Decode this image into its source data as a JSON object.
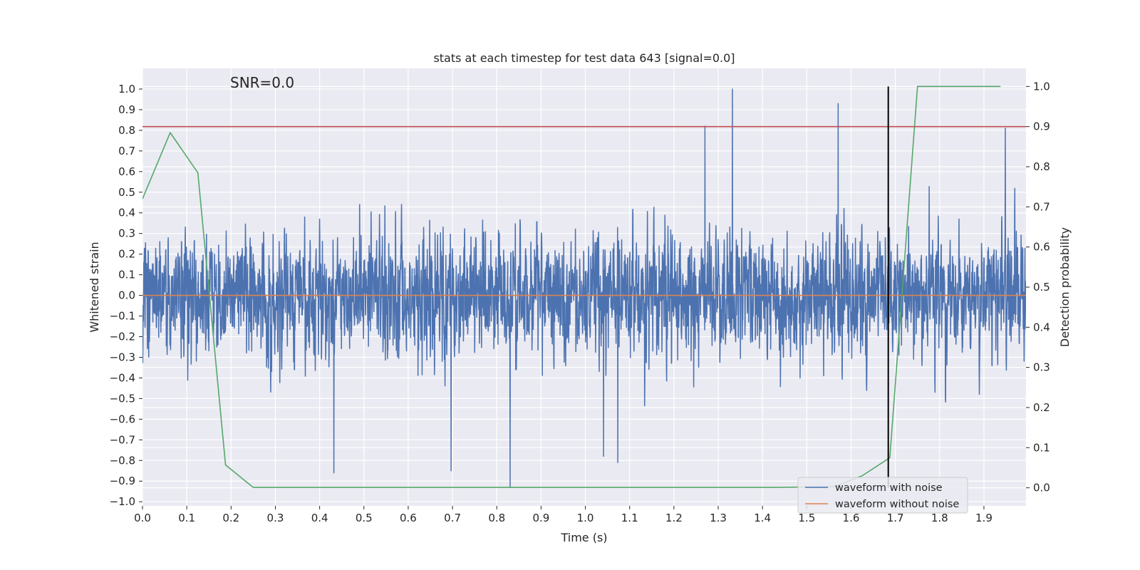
{
  "chart_data": {
    "type": "line",
    "title": "stats at each timestep for test data 643 [signal=0.0]",
    "annotation": "SNR=0.0",
    "xlabel": "Time (s)",
    "ylabel": "Whitened strain",
    "y2label": "Detection probability",
    "xlim": [
      0.0,
      1.995
    ],
    "ylim": [
      -1.02,
      1.1
    ],
    "y2lim": [
      -0.045,
      1.045
    ],
    "x_ticks": [
      0.0,
      0.1,
      0.2,
      0.3,
      0.4,
      0.5,
      0.6,
      0.7,
      0.8,
      0.9,
      1.0,
      1.1,
      1.2,
      1.3,
      1.4,
      1.5,
      1.6,
      1.7,
      1.8,
      1.9
    ],
    "y_ticks": [
      -1.0,
      -0.9,
      -0.8,
      -0.7,
      -0.6,
      -0.5,
      -0.4,
      -0.3,
      -0.2,
      -0.1,
      0.0,
      0.1,
      0.2,
      0.3,
      0.4,
      0.5,
      0.6,
      0.7,
      0.8,
      0.9,
      1.0
    ],
    "y2_ticks": [
      0.0,
      0.1,
      0.2,
      0.3,
      0.4,
      0.5,
      0.6,
      0.7,
      0.8,
      0.9,
      1.0
    ],
    "grid": true,
    "legend_position": "lower right",
    "threshold": {
      "axis": "right",
      "value": 0.9,
      "color": "#c44e52"
    },
    "marker_line": {
      "x": 1.684,
      "y2_from": 0.0,
      "y2_to": 1.0,
      "color": "#000000"
    },
    "noisy_waveform": {
      "sample_rate": 2048,
      "seed": 643,
      "std": 0.2,
      "min": -0.93,
      "max": 1.0,
      "peaks": [
        {
          "x": 1.332,
          "y": 1.0
        },
        {
          "x": 1.571,
          "y": 0.93
        },
        {
          "x": 1.27,
          "y": 0.82
        },
        {
          "x": 1.948,
          "y": 0.81
        },
        {
          "x": 0.83,
          "y": -0.93
        },
        {
          "x": 0.432,
          "y": -0.86
        },
        {
          "x": 1.073,
          "y": -0.81
        },
        {
          "x": 0.697,
          "y": -0.85
        },
        {
          "x": 1.041,
          "y": -0.78
        }
      ]
    },
    "series": [
      {
        "name": "waveform with noise",
        "color": "#4c72b0",
        "axis": "left",
        "x": [],
        "y": []
      },
      {
        "name": "waveform without noise",
        "color": "#dd8452",
        "axis": "left",
        "x": [
          0.0,
          1.995
        ],
        "y": [
          0.0,
          0.0
        ]
      },
      {
        "name": "",
        "color": "#55a868",
        "axis": "right",
        "x": [
          0.0,
          0.0625,
          0.125,
          0.1875,
          0.25,
          0.3125,
          0.375,
          0.4375,
          0.5,
          0.5625,
          0.625,
          0.6875,
          0.75,
          0.8125,
          0.875,
          0.9375,
          1.0,
          1.0625,
          1.125,
          1.1875,
          1.25,
          1.3125,
          1.375,
          1.4375,
          1.5,
          1.5625,
          1.625,
          1.6875,
          1.75,
          1.8125,
          1.875,
          1.9375
        ],
        "y": [
          0.72,
          0.885,
          0.785,
          0.057,
          0.001,
          0.001,
          0.001,
          0.001,
          0.001,
          0.001,
          0.001,
          0.001,
          0.001,
          0.001,
          0.001,
          0.001,
          0.001,
          0.001,
          0.001,
          0.001,
          0.001,
          0.001,
          0.001,
          0.001,
          0.002,
          0.003,
          0.03,
          0.075,
          1.0,
          1.0,
          1.0,
          1.0
        ]
      }
    ]
  }
}
